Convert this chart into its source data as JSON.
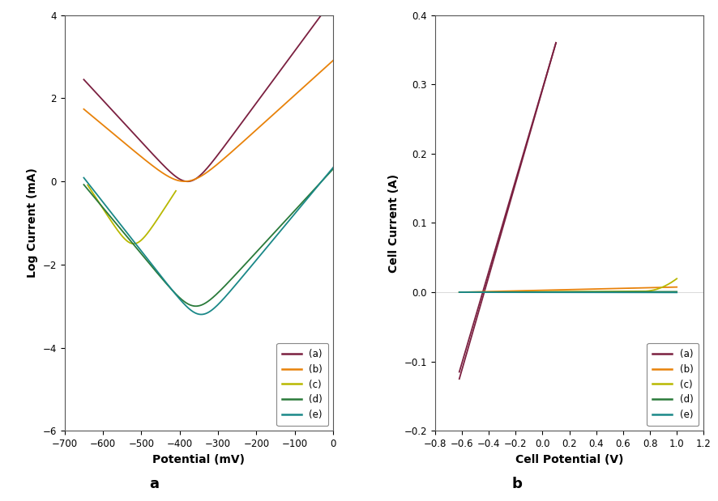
{
  "plot_a": {
    "xlabel": "Potential (mV)",
    "ylabel": "Log Current (mA)",
    "xlim": [
      -700,
      0
    ],
    "ylim": [
      -6,
      4
    ],
    "xticks": [
      -700,
      -600,
      -500,
      -400,
      -300,
      -200,
      -100,
      0
    ],
    "yticks": [
      -6,
      -4,
      -2,
      0,
      2,
      4
    ],
    "label_fontsize": 10,
    "tick_fontsize": 8.5,
    "title": "a",
    "legend_labels": [
      "(a)",
      "(b)",
      "(c)",
      "(d)",
      "(e)"
    ],
    "colors": [
      "#7B2040",
      "#E8820A",
      "#B8B800",
      "#2A7A3A",
      "#1A8888"
    ]
  },
  "plot_b": {
    "xlabel": "Cell Potential (V)",
    "ylabel": "Cell Current (A)",
    "xlim": [
      -0.8,
      1.2
    ],
    "ylim": [
      -0.2,
      0.4
    ],
    "xticks": [
      -0.8,
      -0.6,
      -0.4,
      -0.2,
      0.0,
      0.2,
      0.4,
      0.6,
      0.8,
      1.0,
      1.2
    ],
    "yticks": [
      -0.2,
      -0.1,
      0.0,
      0.1,
      0.2,
      0.3,
      0.4
    ],
    "label_fontsize": 10,
    "tick_fontsize": 8.5,
    "title": "b",
    "legend_labels": [
      "(a)",
      "(b)",
      "(c)",
      "(d)",
      "(e)"
    ],
    "colors": [
      "#7B2040",
      "#E8820A",
      "#B8B800",
      "#2A7A3A",
      "#1A8888"
    ]
  },
  "background_color": "#ffffff",
  "figure_label_fontsize": 13,
  "figure_label_fontweight": "bold"
}
